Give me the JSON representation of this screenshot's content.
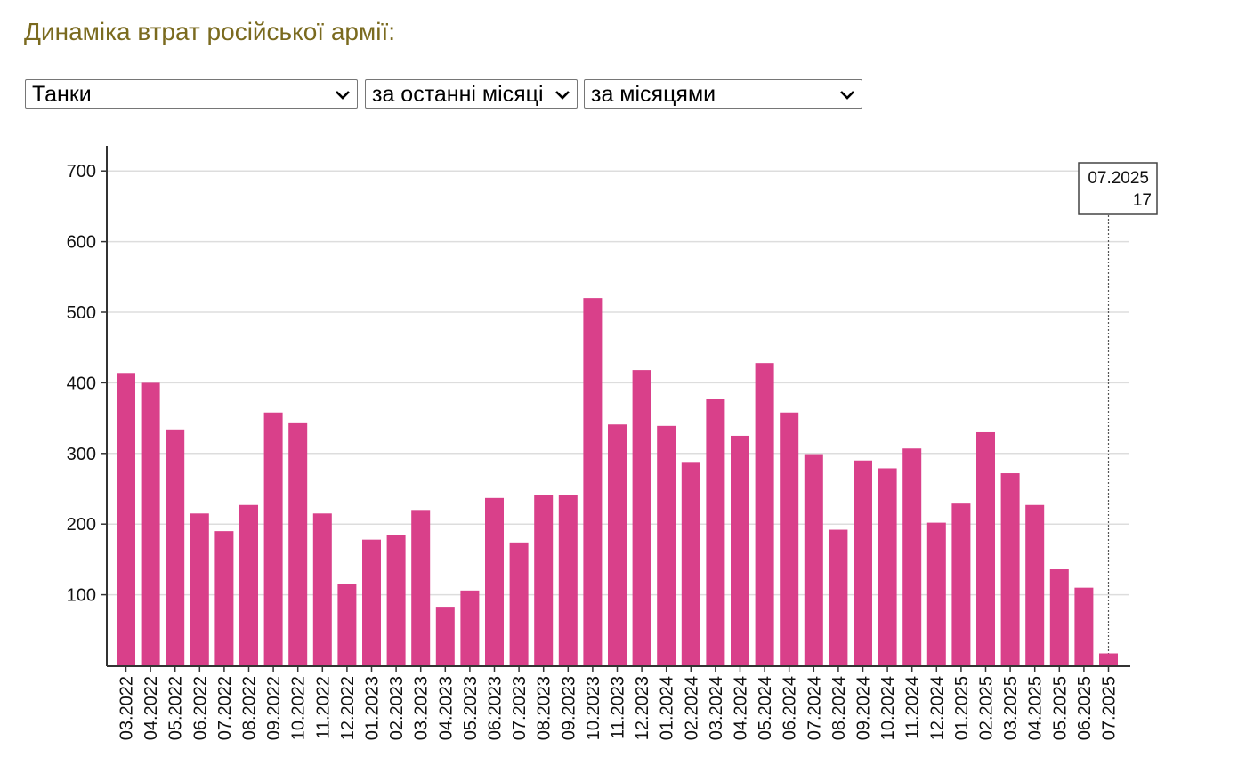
{
  "page": {
    "title": "Динаміка втрат російської армії:"
  },
  "controls": {
    "category": {
      "selected": "Танки"
    },
    "period": {
      "selected": "за останні місяці"
    },
    "granularity": {
      "selected": "за місяцями"
    }
  },
  "colors": {
    "bar": "#d9408a",
    "grid": "#dddddd",
    "axis": "#333333",
    "title": "#7a6a1f"
  },
  "chart_data": {
    "type": "bar",
    "title": "",
    "xlabel": "",
    "ylabel": "",
    "ylim": [
      0,
      730
    ],
    "yticks": [
      100,
      200,
      300,
      400,
      500,
      600,
      700
    ],
    "grid": true,
    "categories": [
      "03.2022",
      "04.2022",
      "05.2022",
      "06.2022",
      "07.2022",
      "08.2022",
      "09.2022",
      "10.2022",
      "11.2022",
      "12.2022",
      "01.2023",
      "02.2023",
      "03.2023",
      "04.2023",
      "05.2023",
      "06.2023",
      "07.2023",
      "08.2023",
      "09.2023",
      "10.2023",
      "11.2023",
      "12.2023",
      "01.2024",
      "02.2024",
      "03.2024",
      "04.2024",
      "05.2024",
      "06.2024",
      "07.2024",
      "08.2024",
      "09.2024",
      "10.2024",
      "11.2024",
      "12.2024",
      "01.2025",
      "02.2025",
      "03.2025",
      "04.2025",
      "05.2025",
      "06.2025",
      "07.2025"
    ],
    "values": [
      414,
      400,
      334,
      215,
      190,
      227,
      358,
      344,
      215,
      115,
      178,
      185,
      220,
      83,
      106,
      237,
      174,
      241,
      241,
      520,
      341,
      418,
      339,
      288,
      377,
      325,
      428,
      358,
      299,
      192,
      290,
      279,
      307,
      202,
      229,
      330,
      272,
      227,
      136,
      110,
      17
    ],
    "tooltip": {
      "label": "07.2025",
      "value": "17"
    }
  }
}
